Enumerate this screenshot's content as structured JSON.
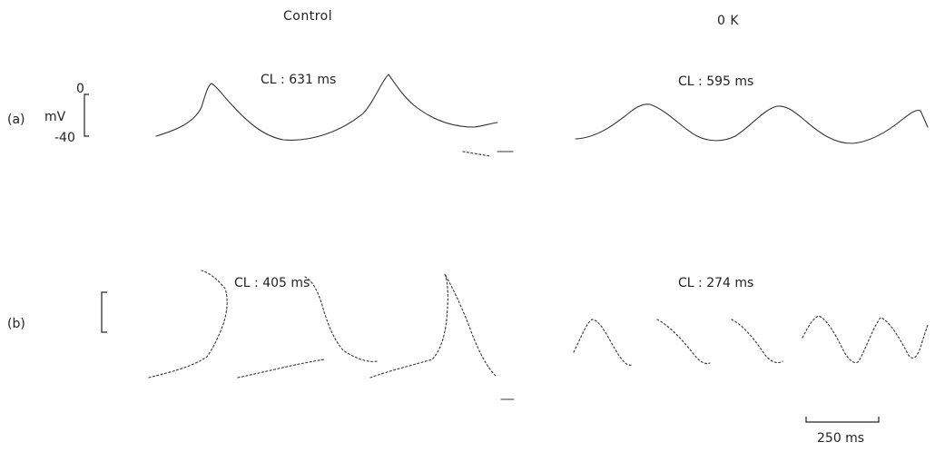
{
  "columns": {
    "left": "Control",
    "right": "0 K"
  },
  "rows": {
    "a": "(a)",
    "b": "(b)"
  },
  "calibration": {
    "top": "0",
    "unit": "mV",
    "bottom": "-40"
  },
  "cycle_lengths": {
    "a_control": "CL : 631 ms",
    "a_zero_k": "CL : 595 ms",
    "b_control": "CL : 405 ms",
    "b_zero_k": "CL : 274 ms"
  },
  "time_scale": "250 ms"
}
